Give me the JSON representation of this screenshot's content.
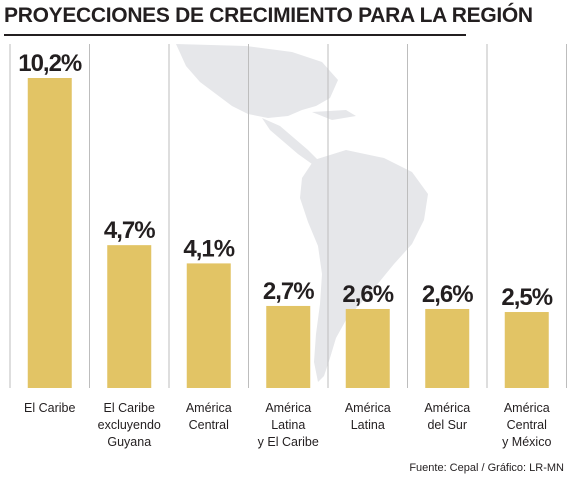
{
  "title": "PROYECCIONES DE CRECIMIENTO PARA LA REGIÓN",
  "source": "Fuente: Cepal / Gráfico: LR-MN",
  "colors": {
    "bar": "#e2c465",
    "divider": "#bdbdbd",
    "map": "#e6e7ea",
    "text": "#231f20"
  },
  "chart_data": {
    "type": "bar",
    "title": "PROYECCIONES DE CRECIMIENTO PARA LA REGIÓN",
    "xlabel": "",
    "ylabel": "",
    "ylim": [
      0,
      11
    ],
    "grid": false,
    "legend": "none",
    "categories": [
      [
        "El Caribe"
      ],
      [
        "El Caribe",
        "excluyendo",
        "Guyana"
      ],
      [
        "América",
        "Central"
      ],
      [
        "América",
        "Latina",
        "y El Caribe"
      ],
      [
        "América",
        "Latina"
      ],
      [
        "América",
        "del Sur"
      ],
      [
        "América",
        "Central",
        "y México"
      ]
    ],
    "values": [
      10.2,
      4.7,
      4.1,
      2.7,
      2.6,
      2.6,
      2.5
    ],
    "value_labels": [
      "10,2%",
      "4,7%",
      "4,1%",
      "2,7%",
      "2,6%",
      "2,6%",
      "2,5%"
    ]
  }
}
